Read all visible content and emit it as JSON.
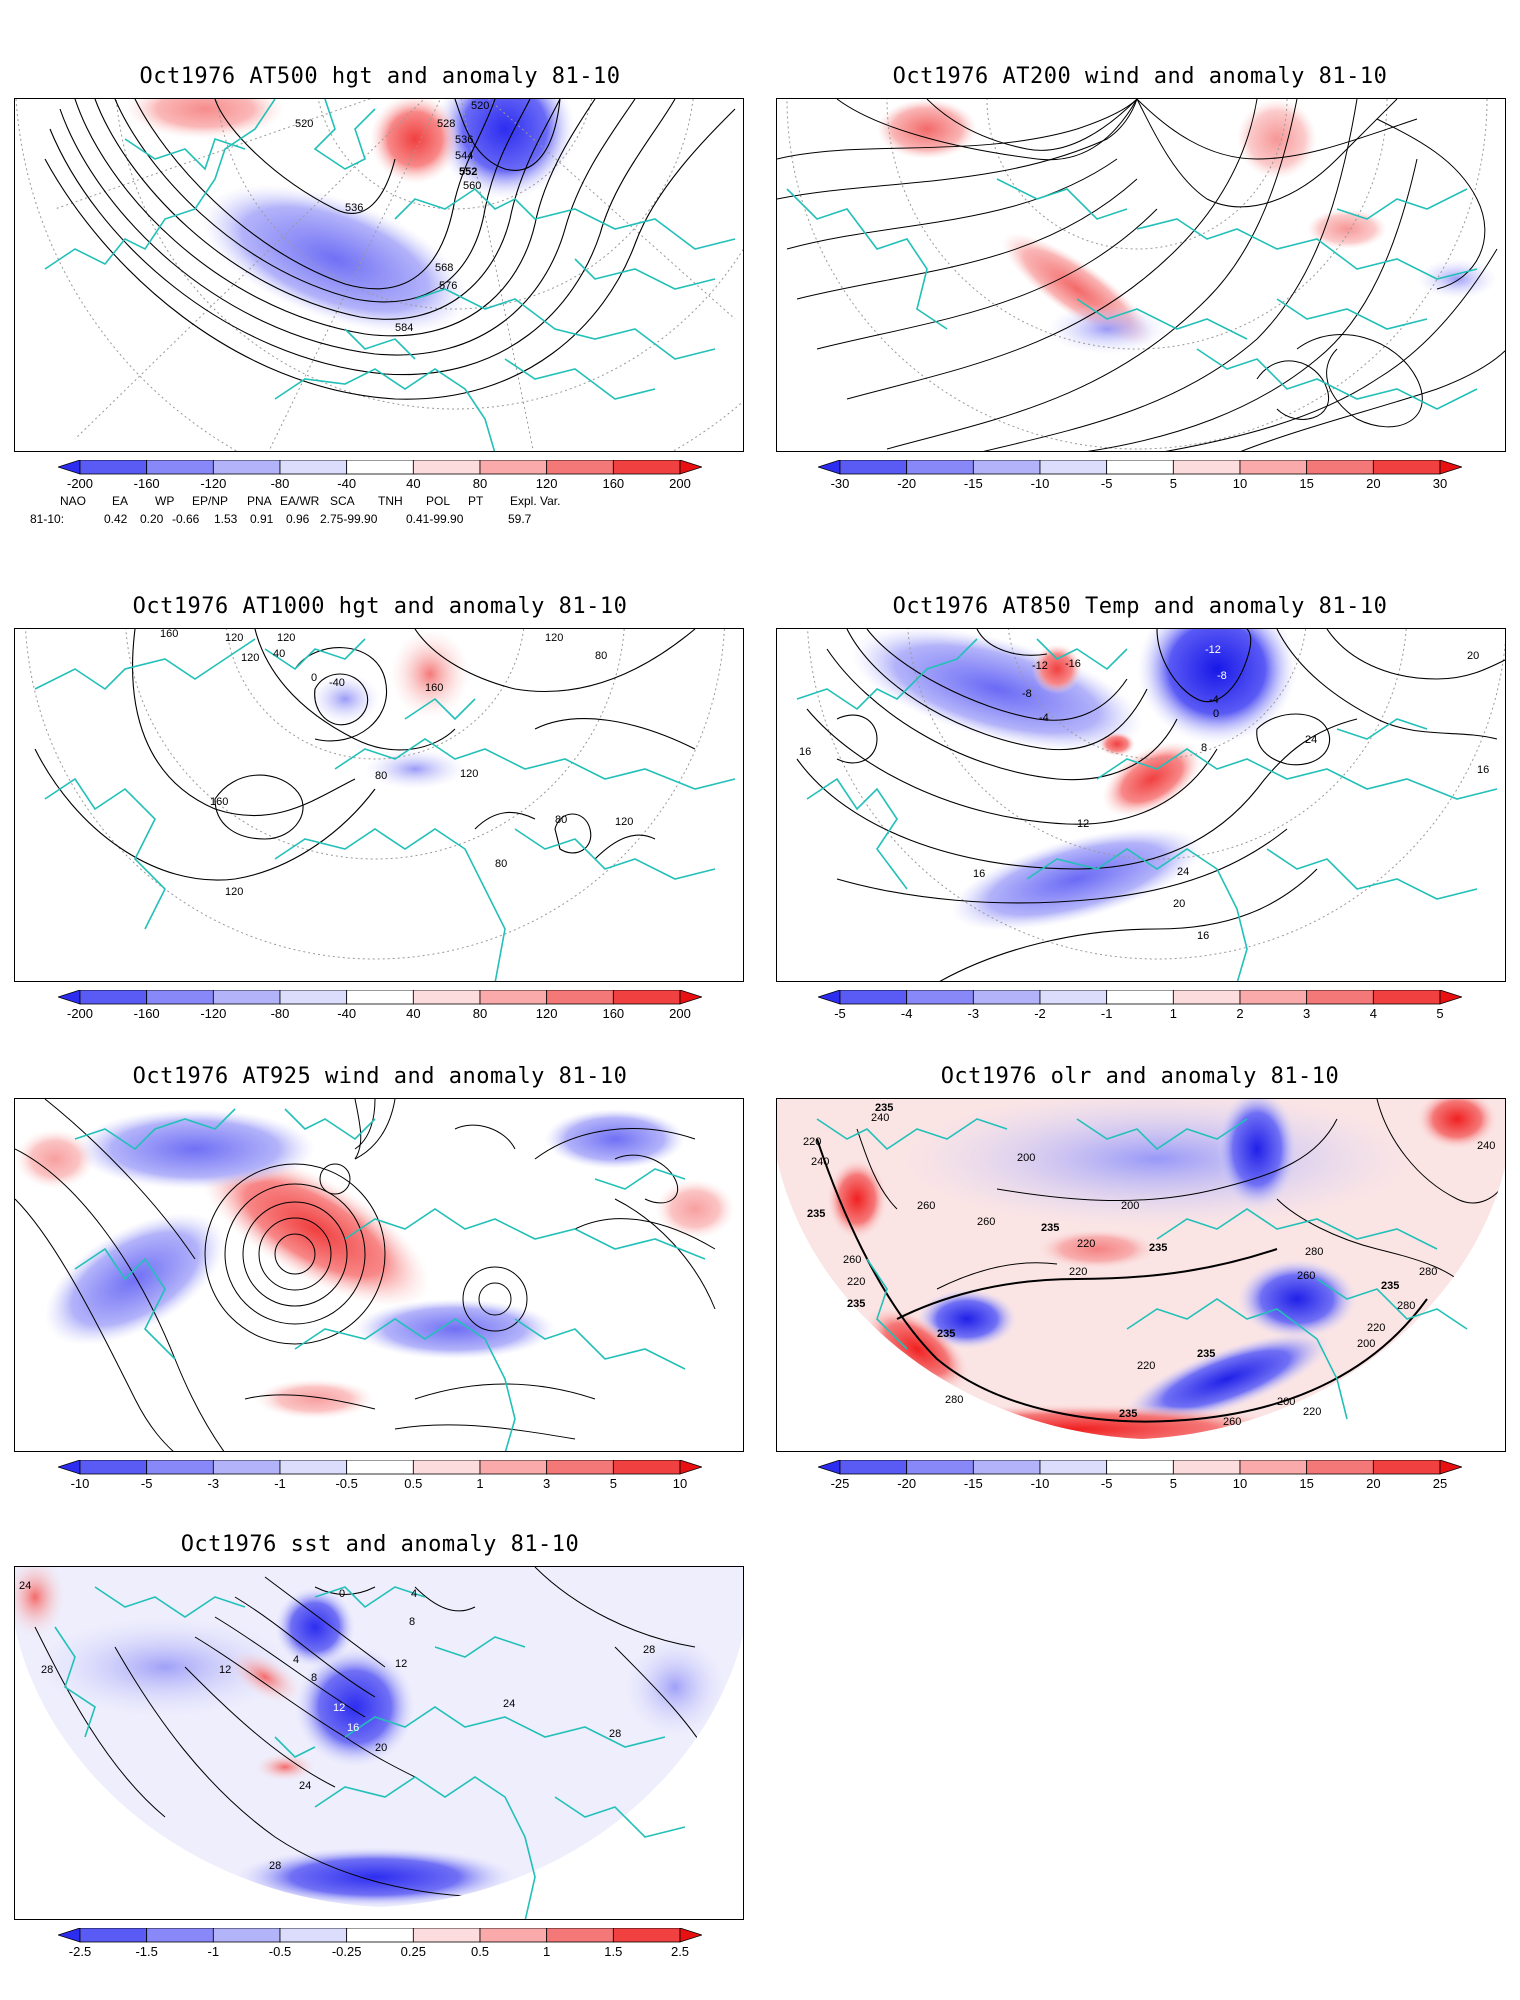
{
  "panels": [
    {
      "id": "p500",
      "title": "Oct1976 AT500 hgt and anomaly 81-10",
      "contour_labels": [
        "520",
        "520",
        "528",
        "536",
        "544",
        "552",
        "560",
        "536",
        "568",
        "576",
        "584"
      ],
      "colorbar": {
        "ticks": [
          "-200",
          "-160",
          "-120",
          "-80",
          "-40",
          "40",
          "80",
          "120",
          "160",
          "200"
        ],
        "colors": [
          "#2d2df0",
          "#5a5af5",
          "#8888f8",
          "#b3b3fa",
          "#dcdcfc",
          "#ffffff",
          "#fcdcdc",
          "#faaaaa",
          "#f57878",
          "#f04040",
          "#e81010"
        ]
      }
    },
    {
      "id": "p200",
      "title": "Oct1976 AT200 wind and anomaly 81-10",
      "contour_labels": [],
      "colorbar": {
        "ticks": [
          "-30",
          "-20",
          "-15",
          "-10",
          "-5",
          "5",
          "10",
          "15",
          "20",
          "30"
        ],
        "colors": [
          "#2d2df0",
          "#5a5af5",
          "#8888f8",
          "#b3b3fa",
          "#dcdcfc",
          "#ffffff",
          "#fcdcdc",
          "#faaaaa",
          "#f57878",
          "#f04040",
          "#e81010"
        ]
      }
    },
    {
      "id": "p1000",
      "title": "Oct1976 AT1000 hgt and anomaly 81-10",
      "contour_labels": [
        "160",
        "120",
        "120",
        "120",
        "40",
        "0",
        "-40",
        "160",
        "120",
        "160",
        "80",
        "80",
        "120",
        "80",
        "120",
        "80",
        "120"
      ],
      "colorbar": {
        "ticks": [
          "-200",
          "-160",
          "-120",
          "-80",
          "-40",
          "40",
          "80",
          "120",
          "160",
          "200"
        ],
        "colors": [
          "#2d2df0",
          "#5a5af5",
          "#8888f8",
          "#b3b3fa",
          "#dcdcfc",
          "#ffffff",
          "#fcdcdc",
          "#faaaaa",
          "#f57878",
          "#f04040",
          "#e81010"
        ]
      }
    },
    {
      "id": "p850",
      "title": "Oct1976 AT850 Temp and anomaly 81-10",
      "contour_labels": [
        "-12",
        "-16",
        "-8",
        "-4",
        "-12",
        "-8",
        "-4",
        "0",
        "8",
        "24",
        "20",
        "16",
        "16",
        "12",
        "16",
        "24",
        "20",
        "16"
      ],
      "colorbar": {
        "ticks": [
          "-5",
          "-4",
          "-3",
          "-2",
          "-1",
          "1",
          "2",
          "3",
          "4",
          "5"
        ],
        "colors": [
          "#2d2df0",
          "#5a5af5",
          "#8888f8",
          "#b3b3fa",
          "#dcdcfc",
          "#ffffff",
          "#fcdcdc",
          "#faaaaa",
          "#f57878",
          "#f04040",
          "#e81010"
        ]
      }
    },
    {
      "id": "p925",
      "title": "Oct1976 AT925 wind and anomaly 81-10",
      "contour_labels": [],
      "colorbar": {
        "ticks": [
          "-10",
          "-5",
          "-3",
          "-1",
          "-0.5",
          "0.5",
          "1",
          "3",
          "5",
          "10"
        ],
        "colors": [
          "#2d2df0",
          "#5a5af5",
          "#8888f8",
          "#b3b3fa",
          "#dcdcfc",
          "#ffffff",
          "#fcdcdc",
          "#faaaaa",
          "#f57878",
          "#f04040",
          "#e81010"
        ]
      }
    },
    {
      "id": "polr",
      "title": "Oct1976 olr and anomaly 81-10",
      "contour_labels": [
        "235",
        "220",
        "240",
        "235",
        "260",
        "200",
        "220",
        "200",
        "235",
        "220",
        "240",
        "235",
        "260",
        "220",
        "235",
        "280",
        "260",
        "235",
        "220",
        "200",
        "280",
        "235",
        "235",
        "260",
        "220",
        "280",
        "200",
        "220",
        "235",
        "280",
        "260",
        "240"
      ],
      "colorbar": {
        "ticks": [
          "-25",
          "-20",
          "-15",
          "-10",
          "-5",
          "5",
          "10",
          "15",
          "20",
          "25"
        ],
        "colors": [
          "#2d2df0",
          "#5a5af5",
          "#8888f8",
          "#b3b3fa",
          "#dcdcfc",
          "#ffffff",
          "#fcdcdc",
          "#faaaaa",
          "#f57878",
          "#f04040",
          "#e81010"
        ]
      }
    },
    {
      "id": "psst",
      "title": "Oct1976 sst and anomaly 81-10",
      "contour_labels": [
        "24",
        "28",
        "12",
        "4",
        "8",
        "12",
        "16",
        "20",
        "24",
        "0",
        "4",
        "8",
        "12",
        "28",
        "24",
        "28",
        "28"
      ],
      "colorbar": {
        "ticks": [
          "-2.5",
          "-1.5",
          "-1",
          "-0.5",
          "-0.25",
          "0.25",
          "0.5",
          "1",
          "1.5",
          "2.5"
        ],
        "colors": [
          "#2d2df0",
          "#5a5af5",
          "#8888f8",
          "#b3b3fa",
          "#dcdcfc",
          "#ffffff",
          "#fcdcdc",
          "#faaaaa",
          "#f57878",
          "#f04040",
          "#e81010"
        ]
      }
    }
  ],
  "indices": {
    "row_label": "81-10:",
    "headers": [
      "NAO",
      "EA",
      "WP",
      "EP/NP",
      "PNA",
      "EA/WR",
      "SCA",
      "TNH",
      "POL",
      "PT",
      "Expl. Var."
    ],
    "values": [
      "0.42",
      "0.20",
      "-0.66",
      "1.53",
      "0.91",
      "0.96",
      "2.75-99.90",
      "0.41-99.90",
      "59.7"
    ]
  }
}
